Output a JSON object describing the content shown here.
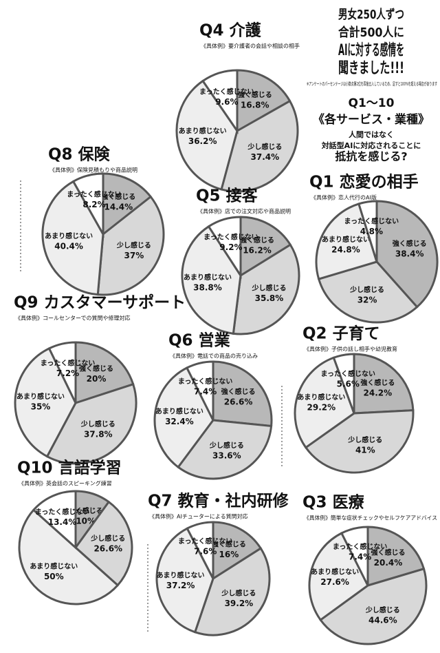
{
  "header": {
    "lines": [
      "男女250人ずつ",
      "合計500人に",
      "AIに対する感情を",
      "聞きました!!!"
    ],
    "note": "※アンケートのパーセンテージは小数点第2位を四捨五入しているため、足すと100%を超える場合があります",
    "question": {
      "label": "Q1〜10",
      "scope": "《各サービス・業種》",
      "lines": [
        "人間ではなく",
        "対話型AIに対応されることに",
        "抵抗を感じる?"
      ]
    }
  },
  "chart_data": [
    {
      "type": "pie",
      "title": "Q4 介護",
      "subtitle": "《具体例》要介護者の会話や相談の相手",
      "categories": [
        "強く感じる",
        "少し感じる",
        "あまり感じない",
        "まったく感じない"
      ],
      "values": [
        16.8,
        37.4,
        36.2,
        9.6
      ],
      "value_labels": [
        "16.8%",
        "37.4%",
        "36.2%",
        "9.6%"
      ],
      "colors": [
        "#b8b8b8",
        "#d8d8d8",
        "#eeeeee",
        "#ffffff"
      ]
    },
    {
      "type": "pie",
      "title": "Q8 保険",
      "subtitle": "《具体例》保険見積もりや商品説明",
      "categories": [
        "強く感じる",
        "少し感じる",
        "あまり感じない",
        "まったく感じない"
      ],
      "values": [
        14.4,
        37,
        40.4,
        8.2
      ],
      "value_labels": [
        "14.4%",
        "37%",
        "40.4%",
        "8.2%"
      ],
      "colors": [
        "#b8b8b8",
        "#d8d8d8",
        "#eeeeee",
        "#ffffff"
      ]
    },
    {
      "type": "pie",
      "title": "Q5 接客",
      "subtitle": "《具体例》店での注文対応や商品説明",
      "categories": [
        "強く感じる",
        "少し感じる",
        "あまり感じない",
        "まったく感じない"
      ],
      "values": [
        16.2,
        35.8,
        38.8,
        9.2
      ],
      "value_labels": [
        "16.2%",
        "35.8%",
        "38.8%",
        "9.2%"
      ],
      "colors": [
        "#b8b8b8",
        "#d8d8d8",
        "#eeeeee",
        "#ffffff"
      ]
    },
    {
      "type": "pie",
      "title": "Q1 恋愛の相手",
      "subtitle": "《具体例》恋人代行のAI版",
      "categories": [
        "強く感じる",
        "少し感じる",
        "あまり感じない",
        "まったく感じない"
      ],
      "values": [
        38.4,
        32,
        24.8,
        4.8
      ],
      "value_labels": [
        "38.4%",
        "32%",
        "24.8%",
        "4.8%"
      ],
      "colors": [
        "#b8b8b8",
        "#d8d8d8",
        "#eeeeee",
        "#ffffff"
      ]
    },
    {
      "type": "pie",
      "title": "Q9 カスタマーサポート",
      "subtitle": "《具体例》コールセンターでの質問や修理対応",
      "categories": [
        "強く感じる",
        "少し感じる",
        "あまり感じない",
        "まったく感じない"
      ],
      "values": [
        20,
        37.8,
        35,
        7.2
      ],
      "value_labels": [
        "20%",
        "37.8%",
        "35%",
        "7.2%"
      ],
      "colors": [
        "#b8b8b8",
        "#d8d8d8",
        "#eeeeee",
        "#ffffff"
      ]
    },
    {
      "type": "pie",
      "title": "Q6 営業",
      "subtitle": "《具体例》電話での商品の売り込み",
      "categories": [
        "強く感じる",
        "少し感じる",
        "あまり感じない",
        "まったく感じない"
      ],
      "values": [
        26.6,
        33.6,
        32.4,
        7.4
      ],
      "value_labels": [
        "26.6%",
        "33.6%",
        "32.4%",
        "7.4%"
      ],
      "colors": [
        "#b8b8b8",
        "#d8d8d8",
        "#eeeeee",
        "#ffffff"
      ]
    },
    {
      "type": "pie",
      "title": "Q2 子育て",
      "subtitle": "《具体例》子供の話し相手や幼児教育",
      "categories": [
        "強く感じる",
        "少し感じる",
        "あまり感じない",
        "まったく感じない"
      ],
      "values": [
        24.2,
        41,
        29.2,
        5.6
      ],
      "value_labels": [
        "24.2%",
        "41%",
        "29.2%",
        "5.6%"
      ],
      "colors": [
        "#b8b8b8",
        "#d8d8d8",
        "#eeeeee",
        "#ffffff"
      ]
    },
    {
      "type": "pie",
      "title": "Q10 言語学習",
      "subtitle": "《具体例》英会話のスピーキング練習",
      "categories": [
        "強く感じる",
        "少し感じる",
        "あまり感じない",
        "まったく感じない"
      ],
      "values": [
        10,
        26.6,
        50,
        13.4
      ],
      "value_labels": [
        "10%",
        "26.6%",
        "50%",
        "13.4%"
      ],
      "colors": [
        "#b8b8b8",
        "#d8d8d8",
        "#eeeeee",
        "#ffffff"
      ]
    },
    {
      "type": "pie",
      "title": "Q7 教育・社内研修",
      "subtitle": "《具体例》AIチューターによる質問対応",
      "categories": [
        "強く感じる",
        "少し感じる",
        "あまり感じない",
        "まったく感じない"
      ],
      "values": [
        16,
        39.2,
        37.2,
        7.6
      ],
      "value_labels": [
        "16%",
        "39.2%",
        "37.2%",
        "7.6%"
      ],
      "colors": [
        "#b8b8b8",
        "#d8d8d8",
        "#eeeeee",
        "#ffffff"
      ]
    },
    {
      "type": "pie",
      "title": "Q3 医療",
      "subtitle": "《具体例》簡単な症状チェックやセルフケアアドバイス",
      "categories": [
        "強く感じる",
        "少し感じる",
        "あまり感じない",
        "まったく感じない"
      ],
      "values": [
        20.4,
        44.6,
        27.6,
        7.4
      ],
      "value_labels": [
        "20.4%",
        "44.6%",
        "27.6%",
        "7.4%"
      ],
      "colors": [
        "#b8b8b8",
        "#d8d8d8",
        "#eeeeee",
        "#ffffff"
      ]
    }
  ]
}
